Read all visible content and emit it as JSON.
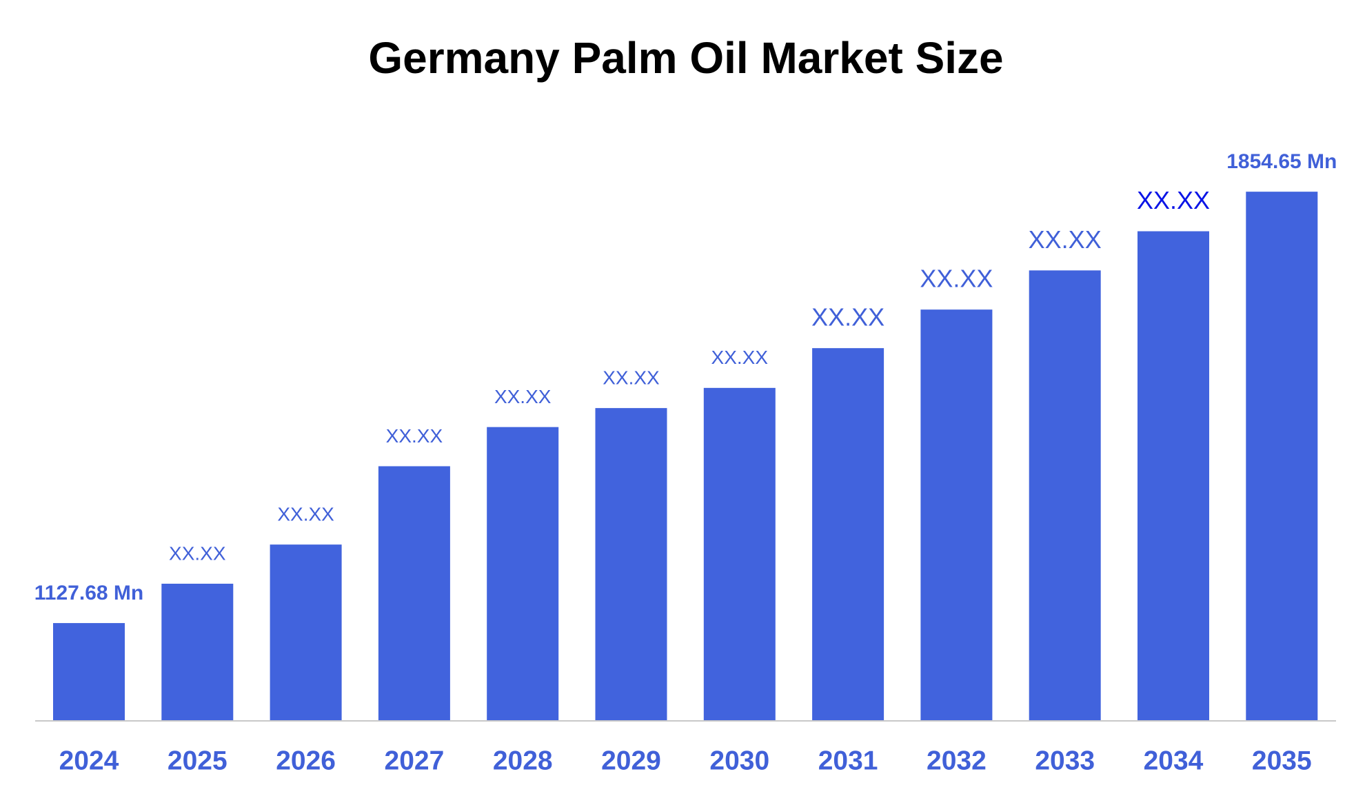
{
  "chart_data": {
    "type": "bar",
    "title": "Germany Palm Oil Market Size",
    "categories": [
      "2024",
      "2025",
      "2026",
      "2027",
      "2028",
      "2029",
      "2030",
      "2031",
      "2032",
      "2033",
      "2034",
      "2035"
    ],
    "values": [
      1127.68,
      1194,
      1260,
      1392,
      1458,
      1490,
      1524,
      1591,
      1656,
      1722,
      1788,
      1854.65
    ],
    "value_labels": [
      "1127.68 Mn",
      "XX.XX",
      "XX.XX",
      "XX.XX",
      "XX.XX",
      "XX.XX",
      "XX.XX",
      "XX.XX",
      "XX.XX",
      "XX.XX",
      "XX.XX",
      "1854.65 Mn"
    ],
    "value_label_colors": [
      "#4060d8",
      "#4060d8",
      "#4060d8",
      "#4060d8",
      "#4060d8",
      "#4060d8",
      "#4060d8",
      "#4060d8",
      "#4060d8",
      "#4060d8",
      "#0a14e6",
      "#4060d8"
    ],
    "color": "#4163dd",
    "ylim": [
      964,
      2000
    ]
  }
}
